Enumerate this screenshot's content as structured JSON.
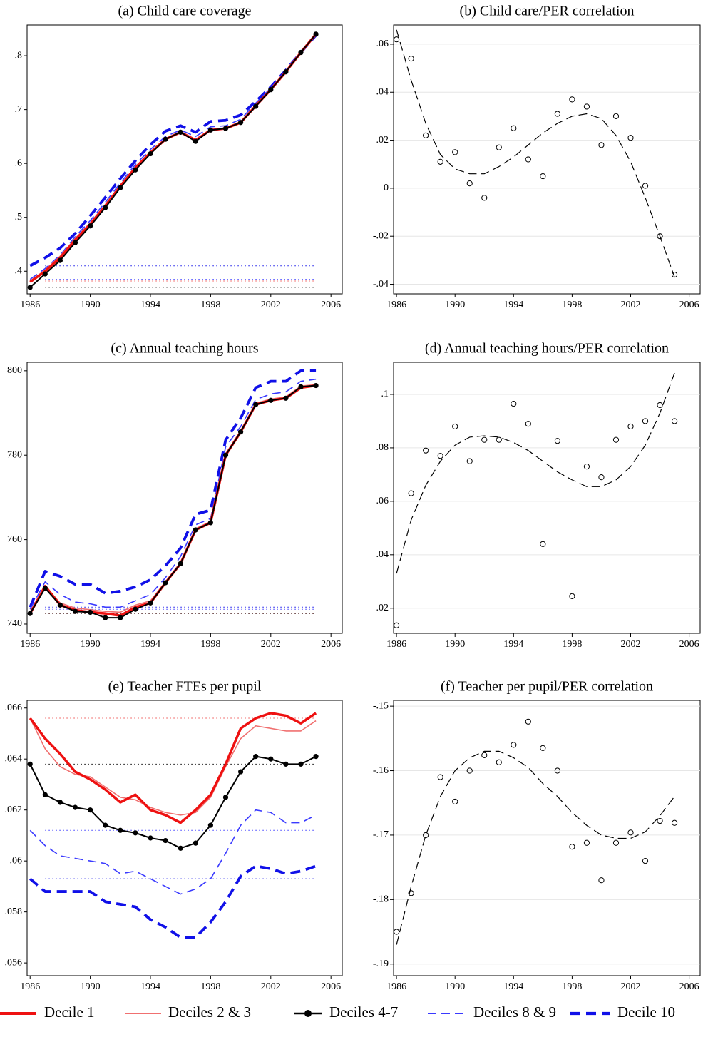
{
  "chart_data": [
    {
      "type": "line",
      "title": "(a) Child care coverage",
      "x": [
        1986,
        1987,
        1988,
        1989,
        1990,
        1991,
        1992,
        1993,
        1994,
        1995,
        1996,
        1997,
        1998,
        1999,
        2000,
        2001,
        2002,
        2003,
        2004,
        2005
      ],
      "xlim": [
        1985.8,
        2006.75
      ],
      "xticks": [
        1986,
        1990,
        1994,
        1998,
        2002,
        2006
      ],
      "ylim": [
        0.358,
        0.857
      ],
      "yticks": [
        {
          "value": 0.4,
          "label": ".4"
        },
        {
          "value": 0.5,
          "label": ".5"
        },
        {
          "value": 0.6,
          "label": ".6"
        },
        {
          "value": 0.7,
          "label": ".7"
        },
        {
          "value": 0.8,
          "label": ".8"
        }
      ],
      "grid": false,
      "series": [
        {
          "name": "Decile 1",
          "color": "#ee1111",
          "values": [
            0.38,
            0.4,
            0.425,
            0.458,
            0.487,
            0.521,
            0.558,
            0.592,
            0.62,
            0.645,
            0.658,
            0.643,
            0.662,
            0.665,
            0.676,
            0.707,
            0.737,
            0.77,
            0.806,
            0.84
          ]
        },
        {
          "name": "Deciles 2 & 3",
          "color": "#f07070",
          "values": [
            0.382,
            0.402,
            0.428,
            0.461,
            0.49,
            0.524,
            0.56,
            0.594,
            0.622,
            0.646,
            0.659,
            0.645,
            0.663,
            0.666,
            0.678,
            0.708,
            0.738,
            0.77,
            0.805,
            0.838
          ]
        },
        {
          "name": "Deciles 4-7",
          "color": "#000000",
          "values": [
            0.37,
            0.395,
            0.42,
            0.453,
            0.484,
            0.518,
            0.555,
            0.588,
            0.618,
            0.645,
            0.658,
            0.641,
            0.662,
            0.665,
            0.676,
            0.706,
            0.737,
            0.77,
            0.806,
            0.84
          ]
        },
        {
          "name": "Deciles 8 & 9",
          "color": "#3a3aff",
          "values": [
            0.385,
            0.405,
            0.43,
            0.464,
            0.494,
            0.528,
            0.564,
            0.598,
            0.626,
            0.65,
            0.662,
            0.65,
            0.668,
            0.67,
            0.682,
            0.712,
            0.74,
            0.772,
            0.806,
            0.838
          ]
        },
        {
          "name": "Decile 10",
          "color": "#1010e8",
          "values": [
            0.41,
            0.425,
            0.443,
            0.47,
            0.503,
            0.537,
            0.572,
            0.605,
            0.635,
            0.66,
            0.67,
            0.658,
            0.678,
            0.68,
            0.69,
            0.715,
            0.742,
            0.773,
            0.806,
            0.838
          ]
        }
      ]
    },
    {
      "type": "scatter",
      "title": "(b) Child care/PER correlation",
      "x": [
        1986,
        1987,
        1988,
        1989,
        1990,
        1991,
        1992,
        1993,
        1994,
        1995,
        1996,
        1997,
        1998,
        1999,
        2000,
        2001,
        2002,
        2003,
        2004,
        2005
      ],
      "xlim": [
        1985.8,
        2006.75
      ],
      "xticks": [
        1986,
        1990,
        1994,
        1998,
        2002,
        2006
      ],
      "ylim": [
        -0.044,
        0.068
      ],
      "yticks": [
        {
          "value": -0.04,
          "label": "-.04"
        },
        {
          "value": -0.02,
          "label": "-.02"
        },
        0,
        {
          "value": 0.02,
          "label": ".02"
        },
        {
          "value": 0.04,
          "label": ".04"
        },
        {
          "value": 0.06,
          "label": ".06"
        }
      ],
      "grid": true,
      "values": [
        0.062,
        0.054,
        0.022,
        0.011,
        0.015,
        0.002,
        -0.004,
        0.017,
        0.025,
        0.012,
        0.005,
        0.031,
        0.037,
        0.034,
        0.018,
        0.03,
        0.021,
        0.001,
        -0.02,
        -0.036
      ],
      "fit": [
        0.066,
        0.045,
        0.027,
        0.014,
        0.008,
        0.006,
        0.006,
        0.009,
        0.013,
        0.018,
        0.023,
        0.027,
        0.03,
        0.031,
        0.029,
        0.022,
        0.011,
        -0.004,
        -0.02,
        -0.037
      ]
    },
    {
      "type": "line",
      "title": "(c) Annual teaching hours",
      "x": [
        1986,
        1987,
        1988,
        1989,
        1990,
        1991,
        1992,
        1993,
        1994,
        1995,
        1996,
        1997,
        1998,
        1999,
        2000,
        2001,
        2002,
        2003,
        2004,
        2005
      ],
      "xlim": [
        1985.8,
        2006.75
      ],
      "xticks": [
        1986,
        1990,
        1994,
        1998,
        2002,
        2006
      ],
      "ylim": [
        737.8,
        802
      ],
      "yticks": [
        740,
        760,
        780,
        800
      ],
      "grid": false,
      "series": [
        {
          "name": "Decile 1",
          "color": "#ee1111",
          "values": [
            742.5,
            749,
            744.5,
            743.3,
            742.8,
            742.5,
            742,
            744,
            745,
            749.8,
            754.3,
            762.3,
            764,
            780,
            785.5,
            792,
            793,
            793.5,
            796,
            796.5
          ]
        },
        {
          "name": "Deciles 2 & 3",
          "color": "#f07070",
          "values": [
            742.6,
            749,
            745,
            743.8,
            743.4,
            743,
            742.8,
            744.5,
            745.5,
            750,
            754.6,
            762.6,
            764.3,
            780.3,
            785.8,
            792.3,
            793.3,
            793.8,
            796.4,
            796.7
          ]
        },
        {
          "name": "Deciles 4-7",
          "color": "#000000",
          "values": [
            742.5,
            748.5,
            744.5,
            743,
            742.8,
            741.5,
            741.5,
            743.5,
            745,
            749.8,
            754.3,
            762.3,
            764,
            780,
            785.5,
            792,
            793,
            793.5,
            796.2,
            796.5
          ]
        },
        {
          "name": "Deciles 8 & 9",
          "color": "#3a3aff",
          "values": [
            743.5,
            750,
            747,
            745.2,
            744.8,
            744,
            744,
            745.5,
            747,
            751,
            756,
            763.5,
            765,
            782,
            786.8,
            793.2,
            794.5,
            795,
            797.5,
            798
          ]
        },
        {
          "name": "Decile 10",
          "color": "#1010e8",
          "values": [
            744,
            752.5,
            751.3,
            749.4,
            749.4,
            747.3,
            747.8,
            748.8,
            750.5,
            753.8,
            758,
            766,
            767,
            783.6,
            788.8,
            796,
            797.5,
            797.5,
            800,
            800
          ]
        }
      ]
    },
    {
      "type": "scatter",
      "title": "(d) Annual teaching hours/PER correlation",
      "x": [
        1986,
        1987,
        1988,
        1989,
        1990,
        1991,
        1992,
        1993,
        1994,
        1995,
        1996,
        1997,
        1998,
        1999,
        2000,
        2001,
        2002,
        2003,
        2004,
        2005
      ],
      "xlim": [
        1985.8,
        2006.75
      ],
      "xticks": [
        1986,
        1990,
        1994,
        1998,
        2002,
        2006
      ],
      "ylim": [
        0.0106,
        0.112
      ],
      "yticks": [
        {
          "value": 0.02,
          "label": ".02"
        },
        {
          "value": 0.04,
          "label": ".04"
        },
        {
          "value": 0.06,
          "label": ".06"
        },
        {
          "value": 0.08,
          "label": ".08"
        },
        {
          "value": 0.1,
          "label": ".1"
        }
      ],
      "grid": true,
      "values": [
        0.0136,
        0.063,
        0.079,
        0.077,
        0.088,
        0.075,
        0.083,
        0.083,
        0.0965,
        0.089,
        0.044,
        0.0826,
        0.0245,
        0.073,
        0.069,
        0.083,
        0.088,
        0.09,
        0.096,
        0.09
      ],
      "fit": [
        0.033,
        0.053,
        0.066,
        0.075,
        0.081,
        0.084,
        0.0845,
        0.084,
        0.082,
        0.079,
        0.075,
        0.071,
        0.068,
        0.0655,
        0.0655,
        0.068,
        0.073,
        0.081,
        0.093,
        0.108
      ]
    },
    {
      "type": "line",
      "title": "(e) Teacher FTEs per pupil",
      "x": [
        1986,
        1987,
        1988,
        1989,
        1990,
        1991,
        1992,
        1993,
        1994,
        1995,
        1996,
        1997,
        1998,
        1999,
        2000,
        2001,
        2002,
        2003,
        2004,
        2005
      ],
      "xlim": [
        1985.8,
        2006.75
      ],
      "xticks": [
        1986,
        1990,
        1994,
        1998,
        2002,
        2006
      ],
      "ylim": [
        0.0555,
        0.0663
      ],
      "yticks": [
        {
          "value": 0.056,
          "label": ".056"
        },
        {
          "value": 0.058,
          "label": ".058"
        },
        {
          "value": 0.06,
          "label": ".06"
        },
        {
          "value": 0.062,
          "label": ".062"
        },
        {
          "value": 0.064,
          "label": ".064"
        },
        {
          "value": 0.066,
          "label": ".066"
        }
      ],
      "grid": false,
      "series": [
        {
          "name": "Decile 1",
          "color": "#ee1111",
          "values": [
            0.0656,
            0.0648,
            0.0642,
            0.0635,
            0.0632,
            0.0628,
            0.0623,
            0.0626,
            0.062,
            0.0618,
            0.0615,
            0.062,
            0.0626,
            0.0638,
            0.0652,
            0.0656,
            0.0658,
            0.0657,
            0.0654,
            0.0658
          ]
        },
        {
          "name": "Deciles 2 & 3",
          "color": "#f07070",
          "values": [
            0.0656,
            0.0644,
            0.0637,
            0.0634,
            0.0633,
            0.0629,
            0.0625,
            0.0624,
            0.0621,
            0.0619,
            0.0618,
            0.0619,
            0.0625,
            0.0637,
            0.0648,
            0.0653,
            0.0652,
            0.0651,
            0.0651,
            0.0655
          ]
        },
        {
          "name": "Deciles 4-7",
          "color": "#000000",
          "values": [
            0.0638,
            0.0626,
            0.0623,
            0.0621,
            0.062,
            0.0614,
            0.0612,
            0.0611,
            0.0609,
            0.0608,
            0.0605,
            0.0607,
            0.0614,
            0.0625,
            0.0635,
            0.0641,
            0.064,
            0.0638,
            0.0638,
            0.0641
          ]
        },
        {
          "name": "Deciles 8 & 9",
          "color": "#3a3aff",
          "values": [
            0.0612,
            0.0606,
            0.0602,
            0.0601,
            0.06,
            0.0599,
            0.0595,
            0.0596,
            0.0593,
            0.059,
            0.0587,
            0.0589,
            0.0593,
            0.0603,
            0.0614,
            0.062,
            0.0619,
            0.0615,
            0.0615,
            0.0618
          ]
        },
        {
          "name": "Decile 10",
          "color": "#1010e8",
          "values": [
            0.0593,
            0.0588,
            0.0588,
            0.0588,
            0.0588,
            0.0584,
            0.0583,
            0.0582,
            0.0577,
            0.0574,
            0.057,
            0.057,
            0.0576,
            0.0584,
            0.0594,
            0.0598,
            0.0597,
            0.0595,
            0.0596,
            0.0598
          ]
        }
      ]
    },
    {
      "type": "scatter",
      "title": "(f) Teacher per pupil/PER correlation",
      "x": [
        1986,
        1987,
        1988,
        1989,
        1990,
        1991,
        1992,
        1993,
        1994,
        1995,
        1996,
        1997,
        1998,
        1999,
        2000,
        2001,
        2002,
        2003,
        2004,
        2005
      ],
      "xlim": [
        1985.8,
        2006.75
      ],
      "xticks": [
        1986,
        1990,
        1994,
        1998,
        2002,
        2006
      ],
      "ylim": [
        -0.1918,
        -0.1491
      ],
      "yticks": [
        {
          "value": -0.19,
          "label": "-.19"
        },
        {
          "value": -0.18,
          "label": "-.18"
        },
        {
          "value": -0.17,
          "label": "-.17"
        },
        {
          "value": -0.16,
          "label": "-.16"
        },
        {
          "value": -0.15,
          "label": "-.15"
        }
      ],
      "grid": true,
      "values": [
        -0.185,
        -0.179,
        -0.17,
        -0.161,
        -0.1648,
        -0.16,
        -0.1576,
        -0.1587,
        -0.156,
        -0.1524,
        -0.1565,
        -0.16,
        -0.1718,
        -0.1712,
        -0.177,
        -0.1712,
        -0.1696,
        -0.174,
        -0.1678,
        -0.1681
      ],
      "fit": [
        -0.187,
        -0.178,
        -0.17,
        -0.164,
        -0.16,
        -0.158,
        -0.157,
        -0.157,
        -0.158,
        -0.1595,
        -0.162,
        -0.164,
        -0.1665,
        -0.1685,
        -0.17,
        -0.1705,
        -0.1705,
        -0.1695,
        -0.167,
        -0.164
      ]
    }
  ]
}
